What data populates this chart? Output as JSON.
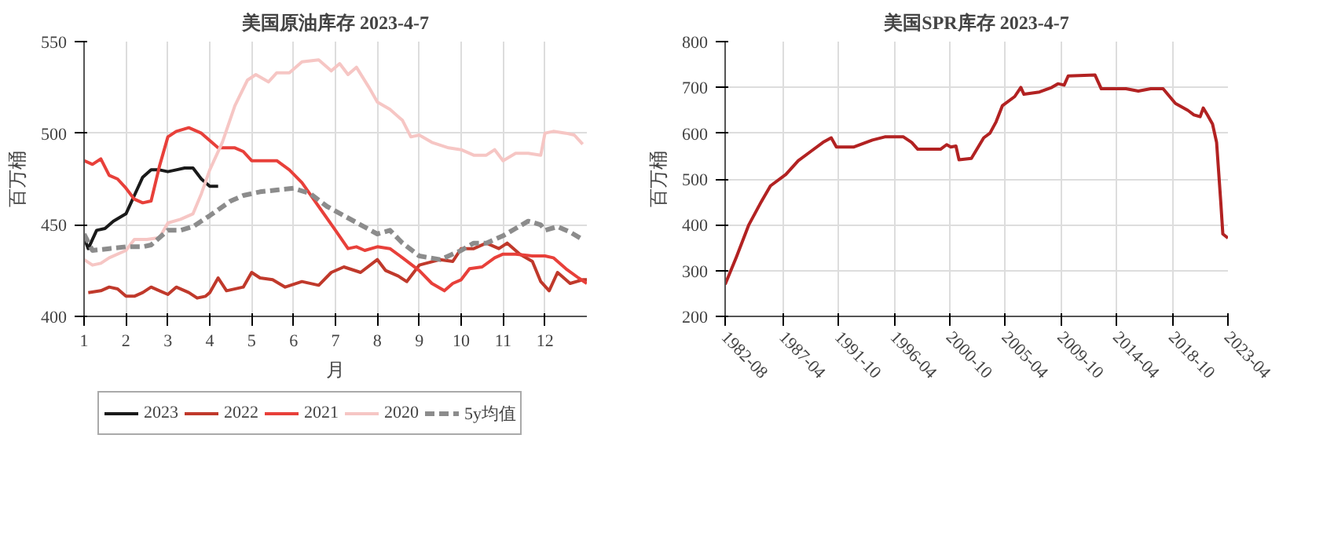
{
  "chart_data": [
    {
      "type": "line",
      "title": "美国原油库存 2023-4-7",
      "xlabel": "月",
      "ylabel": "百万桶",
      "xlim": [
        1,
        13
      ],
      "xticks": [
        1,
        2,
        3,
        4,
        5,
        6,
        7,
        8,
        9,
        10,
        11,
        12
      ],
      "ylim": [
        400,
        550
      ],
      "yticks": [
        400,
        450,
        500,
        550
      ],
      "grid": true,
      "legend": "bottom",
      "series": [
        {
          "name": "2023",
          "color": "#1a1a1a",
          "x": [
            1.0,
            1.1,
            1.3,
            1.5,
            1.7,
            2.0,
            2.2,
            2.4,
            2.6,
            2.8,
            3.0,
            3.2,
            3.4,
            3.6,
            3.8,
            4.0,
            4.2
          ],
          "values": [
            443,
            437,
            447,
            448,
            452,
            456,
            466,
            476,
            480,
            480,
            479,
            480,
            481,
            481,
            475,
            471,
            471
          ]
        },
        {
          "name": "2022",
          "color": "#c0392b",
          "x": [
            1.1,
            1.4,
            1.6,
            1.8,
            2.0,
            2.2,
            2.4,
            2.6,
            2.8,
            3.0,
            3.2,
            3.5,
            3.7,
            3.9,
            4.0,
            4.2,
            4.4,
            4.8,
            5.0,
            5.2,
            5.5,
            5.8,
            6.2,
            6.6,
            6.9,
            7.2,
            7.6,
            8.0,
            8.2,
            8.5,
            8.7,
            9.0,
            9.5,
            9.8,
            10.0,
            10.3,
            10.6,
            10.9,
            11.1,
            11.4,
            11.7,
            11.9,
            12.1,
            12.3,
            12.6,
            12.9,
            13.0
          ],
          "values": [
            413,
            414,
            416,
            415,
            411,
            411,
            413,
            416,
            414,
            412,
            416,
            413,
            410,
            411,
            413,
            421,
            414,
            416,
            424,
            421,
            420,
            416,
            419,
            417,
            424,
            427,
            424,
            431,
            425,
            422,
            419,
            428,
            431,
            430,
            437,
            437,
            440,
            437,
            440,
            434,
            430,
            419,
            414,
            424,
            418,
            420,
            420
          ]
        },
        {
          "name": "2021",
          "color": "#e8403a",
          "x": [
            1.0,
            1.2,
            1.4,
            1.6,
            1.8,
            2.0,
            2.2,
            2.4,
            2.6,
            2.8,
            3.0,
            3.2,
            3.5,
            3.8,
            4.0,
            4.2,
            4.6,
            4.8,
            5.0,
            5.3,
            5.6,
            5.9,
            6.2,
            6.6,
            7.0,
            7.3,
            7.5,
            7.7,
            8.0,
            8.3,
            8.6,
            9.0,
            9.3,
            9.6,
            9.8,
            10.0,
            10.2,
            10.5,
            10.8,
            11.0,
            11.3,
            11.7,
            12.0,
            12.2,
            12.5,
            12.8,
            13.0
          ],
          "values": [
            485,
            483,
            486,
            477,
            475,
            470,
            464,
            462,
            463,
            482,
            498,
            501,
            503,
            500,
            496,
            492,
            492,
            490,
            485,
            485,
            485,
            480,
            473,
            460,
            447,
            437,
            438,
            436,
            438,
            437,
            432,
            425,
            418,
            414,
            418,
            420,
            426,
            427,
            432,
            434,
            434,
            433,
            433,
            432,
            426,
            421,
            418
          ]
        },
        {
          "name": "2020",
          "color": "#f6c6c4",
          "x": [
            1.0,
            1.2,
            1.4,
            1.6,
            2.0,
            2.2,
            2.5,
            2.8,
            3.0,
            3.3,
            3.6,
            3.8,
            4.0,
            4.3,
            4.6,
            4.9,
            5.1,
            5.4,
            5.6,
            5.9,
            6.2,
            6.6,
            6.9,
            7.1,
            7.3,
            7.5,
            7.8,
            8.0,
            8.3,
            8.6,
            8.8,
            9.0,
            9.3,
            9.7,
            10.0,
            10.3,
            10.6,
            10.8,
            11.0,
            11.3,
            11.6,
            11.9,
            12.0,
            12.2,
            12.5,
            12.7,
            12.9
          ],
          "values": [
            431,
            428,
            429,
            432,
            436,
            442,
            442,
            443,
            451,
            453,
            456,
            467,
            480,
            495,
            515,
            529,
            532,
            528,
            533,
            533,
            539,
            540,
            534,
            538,
            532,
            536,
            525,
            517,
            513,
            507,
            498,
            499,
            495,
            492,
            491,
            488,
            488,
            491,
            485,
            489,
            489,
            488,
            500,
            501,
            500,
            499,
            494
          ]
        },
        {
          "name": "5y均值",
          "color": "#8c8c8c",
          "line_style": "dashed",
          "x": [
            1.0,
            1.2,
            1.6,
            2.0,
            2.4,
            2.6,
            3.0,
            3.3,
            3.6,
            4.0,
            4.5,
            4.8,
            5.2,
            5.6,
            6.0,
            6.4,
            6.8,
            7.2,
            7.6,
            8.0,
            8.3,
            8.6,
            9.0,
            9.5,
            10.0,
            10.3,
            10.6,
            11.0,
            11.3,
            11.6,
            11.9,
            12.0,
            12.3,
            12.6,
            12.9
          ],
          "values": [
            445,
            436,
            437,
            438,
            438,
            439,
            447,
            447,
            449,
            455,
            463,
            466,
            468,
            469,
            470,
            467,
            460,
            455,
            450,
            445,
            447,
            440,
            433,
            431,
            436,
            440,
            440,
            444,
            448,
            452,
            450,
            447,
            449,
            446,
            442
          ]
        }
      ]
    },
    {
      "type": "line",
      "title": "美国SPR库存 2023-4-7",
      "ylabel": "百万桶",
      "xlim": [
        "1982-08",
        "2023-04"
      ],
      "xticks": [
        "1982-08",
        "1987-04",
        "1991-10",
        "1996-04",
        "2000-10",
        "2005-04",
        "2009-10",
        "2014-04",
        "2018-10",
        "2023-04"
      ],
      "ylim": [
        200,
        800
      ],
      "yticks": [
        200,
        300,
        400,
        500,
        600,
        700,
        800
      ],
      "grid": true,
      "series": [
        {
          "color": "#b22222",
          "x": [
            "1982-08",
            "1983-07",
            "1984-07",
            "1985-07",
            "1986-04",
            "1987-07",
            "1988-07",
            "1989-07",
            "1990-07",
            "1991-03",
            "1991-08",
            "1993-01",
            "1994-07",
            "1995-07",
            "1997-01",
            "1997-09",
            "1998-03",
            "2000-01",
            "2000-07",
            "2000-11",
            "2001-04",
            "2001-07",
            "2002-07",
            "2003-07",
            "2004-01",
            "2004-07",
            "2005-01",
            "2006-01",
            "2006-07",
            "2006-10",
            "2008-01",
            "2009-01",
            "2009-07",
            "2010-01",
            "2010-05",
            "2012-07",
            "2013-01",
            "2015-01",
            "2016-01",
            "2017-01",
            "2018-01",
            "2019-01",
            "2020-01",
            "2020-07",
            "2021-01",
            "2021-04",
            "2021-08",
            "2022-01",
            "2022-05",
            "2022-09",
            "2022-11",
            "2023-04"
          ],
          "values": [
            270,
            330,
            400,
            450,
            485,
            510,
            540,
            560,
            580,
            590,
            570,
            570,
            585,
            592,
            592,
            580,
            565,
            565,
            575,
            570,
            572,
            542,
            545,
            590,
            600,
            625,
            660,
            680,
            700,
            685,
            690,
            700,
            708,
            705,
            725,
            727,
            697,
            697,
            692,
            697,
            697,
            665,
            650,
            640,
            636,
            655,
            640,
            620,
            580,
            450,
            380,
            371
          ]
        }
      ]
    }
  ]
}
